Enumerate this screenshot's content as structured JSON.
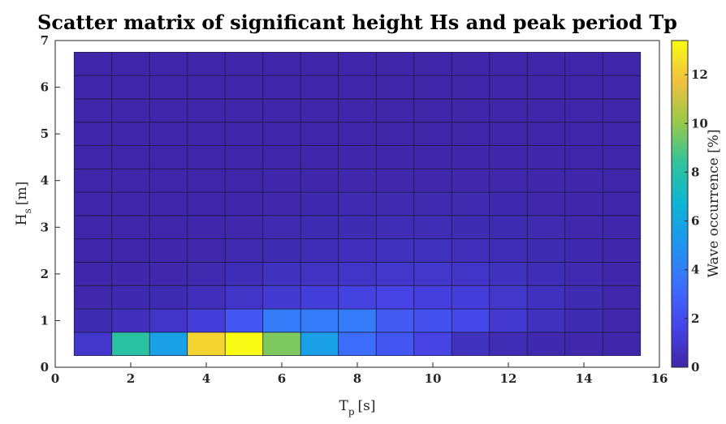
{
  "chart_data": {
    "type": "heatmap",
    "title": "Scatter matrix of significant height Hs and peak period Tp",
    "xlabel": {
      "main": "T",
      "sub": "p",
      "unit": "[s]"
    },
    "ylabel": {
      "main": "H",
      "sub": "s",
      "unit": "[m]"
    },
    "colorbar_label": "Wave occurrence [%]",
    "xlim": [
      0,
      16
    ],
    "ylim": [
      0,
      7
    ],
    "clim": [
      0,
      13.4
    ],
    "xticks": [
      "0",
      "2",
      "4",
      "6",
      "8",
      "10",
      "12",
      "14",
      "16"
    ],
    "yticks": [
      "0",
      "1",
      "2",
      "3",
      "4",
      "5",
      "6",
      "7"
    ],
    "cticks": [
      "0",
      "2",
      "4",
      "6",
      "8",
      "10",
      "12"
    ],
    "x_centers": [
      1,
      2,
      3,
      4,
      5,
      6,
      7,
      8,
      9,
      10,
      11,
      12,
      13,
      14,
      15
    ],
    "y_centers": [
      0.5,
      1.0,
      1.5,
      2.0,
      2.5,
      3.0,
      3.5,
      4.0,
      4.5,
      5.0,
      5.5,
      6.0,
      6.5
    ],
    "values": [
      [
        0.9,
        8.2,
        5.6,
        12.3,
        13.4,
        9.6,
        5.6,
        3.3,
        2.4,
        1.6,
        0.6,
        0.35,
        0.15,
        0.1,
        0.05
      ],
      [
        0.3,
        0.5,
        0.8,
        1.3,
        2.4,
        3.9,
        3.9,
        3.9,
        2.5,
        2.2,
        1.8,
        1.1,
        0.6,
        0.3,
        0.1
      ],
      [
        0.1,
        0.15,
        0.25,
        0.5,
        0.8,
        1.1,
        1.3,
        1.5,
        1.6,
        1.4,
        1.3,
        0.9,
        0.6,
        0.3,
        0.1
      ],
      [
        0.05,
        0.05,
        0.1,
        0.2,
        0.4,
        0.6,
        0.7,
        0.8,
        0.9,
        0.9,
        0.8,
        0.6,
        0.4,
        0.2,
        0.05
      ],
      [
        0,
        0,
        0.05,
        0.1,
        0.2,
        0.3,
        0.4,
        0.5,
        0.6,
        0.6,
        0.5,
        0.4,
        0.3,
        0.15,
        0.05
      ],
      [
        0,
        0,
        0,
        0.05,
        0.1,
        0.2,
        0.25,
        0.3,
        0.35,
        0.35,
        0.3,
        0.25,
        0.2,
        0.1,
        0.05
      ],
      [
        0,
        0,
        0,
        0,
        0.05,
        0.1,
        0.15,
        0.2,
        0.2,
        0.2,
        0.2,
        0.15,
        0.1,
        0.05,
        0
      ],
      [
        0,
        0,
        0,
        0,
        0,
        0.05,
        0.05,
        0.1,
        0.1,
        0.1,
        0.1,
        0.1,
        0.05,
        0.05,
        0
      ],
      [
        0,
        0,
        0,
        0,
        0,
        0,
        0.05,
        0.05,
        0.05,
        0.05,
        0.05,
        0.05,
        0.05,
        0,
        0
      ],
      [
        0,
        0,
        0,
        0,
        0,
        0,
        0,
        0,
        0,
        0,
        0,
        0,
        0,
        0,
        0
      ],
      [
        0,
        0,
        0,
        0,
        0,
        0,
        0,
        0,
        0,
        0,
        0,
        0,
        0,
        0,
        0
      ],
      [
        0,
        0,
        0,
        0,
        0,
        0,
        0,
        0,
        0,
        0,
        0,
        0,
        0,
        0,
        0
      ],
      [
        0,
        0,
        0,
        0,
        0,
        0,
        0,
        0,
        0,
        0,
        0,
        0,
        0,
        0,
        0
      ]
    ],
    "colormap": "parula",
    "grid": false
  }
}
